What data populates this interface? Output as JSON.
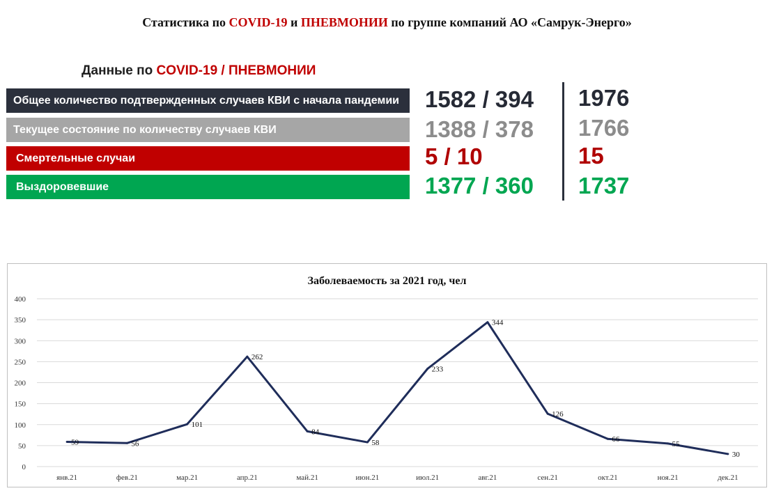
{
  "header": {
    "title_part1": "Статистика  по ",
    "title_covid": "COVID-19",
    "title_and": "  и ",
    "title_pneumonia": "ПНЕВМОНИИ",
    "title_part2": "  по группе компаний АО «Самрук-Энерго»"
  },
  "summary": {
    "heading_prefix": "Данные по ",
    "heading_highlight": "COVID-19 / ПНЕВМОНИИ",
    "rows": [
      {
        "label": "Общее количество подтвержденных случаев КВИ с начала пандемии",
        "split": "1582 / 394",
        "total": "1976"
      },
      {
        "label": "Текущее состояние по количеству случаев КВИ",
        "split": "1388 / 378",
        "total": "1766"
      },
      {
        "label": "Смертельные случаи",
        "split": "5 / 10",
        "total": "15"
      },
      {
        "label": "Выздоровевшие",
        "split": "1377 / 360",
        "total": "1737"
      }
    ]
  },
  "colors": {
    "dark": "#2b303c",
    "gray": "#a6a6a6",
    "red": "#c00000",
    "green": "#00a651",
    "line": "#1f2d5a"
  },
  "chart_data": {
    "type": "line",
    "title": "Заболеваемость за 2021 год, чел",
    "categories": [
      "янв.21",
      "фев.21",
      "мар.21",
      "апр.21",
      "май.21",
      "июн.21",
      "июл.21",
      "авг.21",
      "сен.21",
      "окт.21",
      "ноя.21",
      "дек.21"
    ],
    "values": [
      59,
      56,
      101,
      262,
      84,
      58,
      233,
      344,
      126,
      66,
      55,
      30
    ],
    "ylim": [
      0,
      400
    ],
    "yticks": [
      0,
      50,
      100,
      150,
      200,
      250,
      300,
      350,
      400
    ],
    "grid": true,
    "legend": "none"
  }
}
